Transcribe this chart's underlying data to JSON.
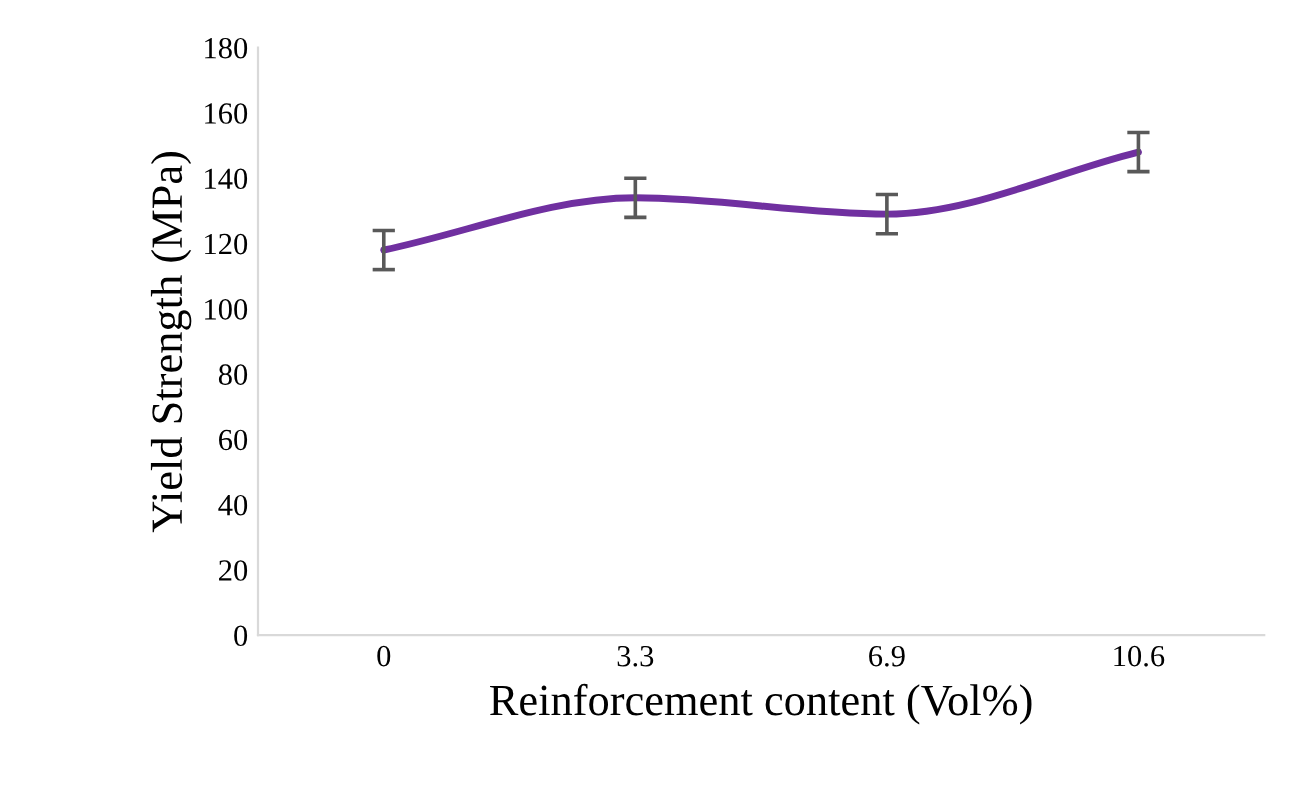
{
  "chart_data": {
    "type": "line",
    "xlabel": "Reinforcement content (Vol%)",
    "ylabel": "Yield Strength (MPa)",
    "categories": [
      "0",
      "3.3",
      "6.9",
      "10.6"
    ],
    "series": [
      {
        "color": "#7030a0",
        "values": [
          118,
          134,
          129,
          148
        ],
        "errors": [
          6,
          6,
          6,
          6
        ]
      }
    ],
    "ylim": [
      0,
      180
    ],
    "yticks": [
      0,
      20,
      40,
      60,
      80,
      100,
      120,
      140,
      160,
      180
    ],
    "grid": false,
    "legend": false,
    "marker": "none",
    "line_style": "solid"
  }
}
